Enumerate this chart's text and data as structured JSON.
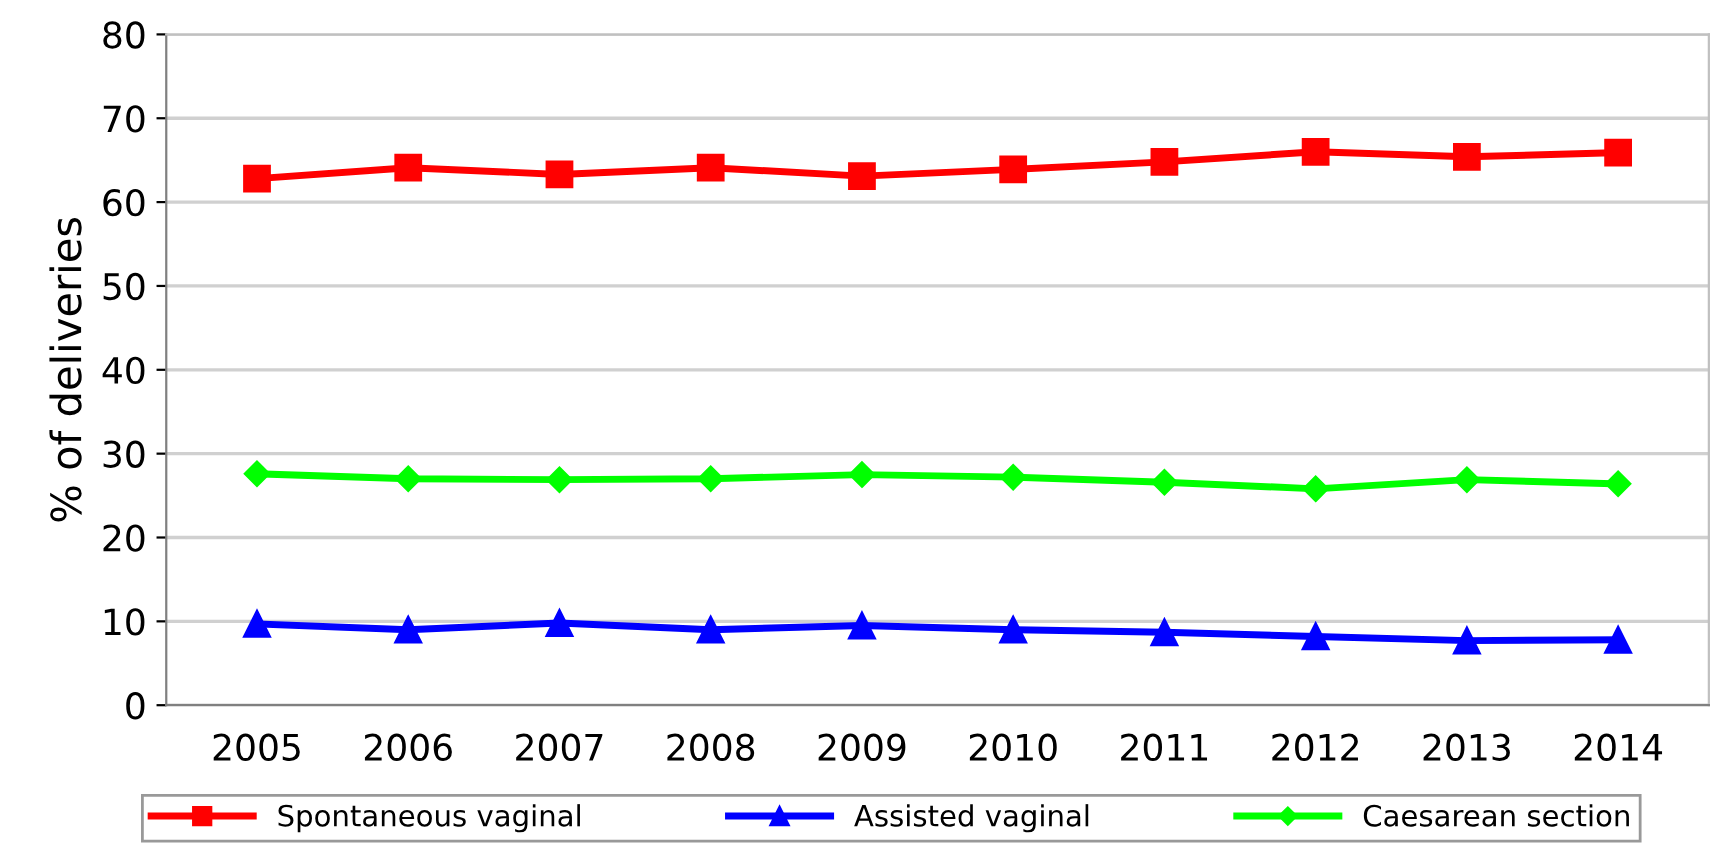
{
  "chart_data": {
    "type": "line",
    "ylabel": "% of deliveries",
    "categories": [
      "2005",
      "2006",
      "2007",
      "2008",
      "2009",
      "2010",
      "2011",
      "2012",
      "2013",
      "2014"
    ],
    "series": [
      {
        "name": "Spontaneous vaginal",
        "color": "#ff0000",
        "marker": "square",
        "values": [
          62.8,
          64.1,
          63.3,
          64.1,
          63.1,
          63.9,
          64.8,
          66.0,
          65.4,
          65.9
        ]
      },
      {
        "name": "Assisted vaginal",
        "color": "#0000ff",
        "marker": "triangle",
        "values": [
          9.7,
          9.0,
          9.8,
          9.0,
          9.5,
          9.0,
          8.7,
          8.2,
          7.7,
          7.8
        ]
      },
      {
        "name": "Caesarean section",
        "color": "#00ff00",
        "marker": "diamond",
        "values": [
          27.6,
          27.0,
          26.9,
          27.0,
          27.5,
          27.2,
          26.6,
          25.8,
          26.9,
          26.4
        ]
      }
    ],
    "ylim": [
      0,
      80
    ],
    "yticks": [
      0,
      10,
      20,
      30,
      40,
      50,
      60,
      70,
      80
    ],
    "grid": "y",
    "legend": "bottom",
    "line_style": "solid"
  }
}
